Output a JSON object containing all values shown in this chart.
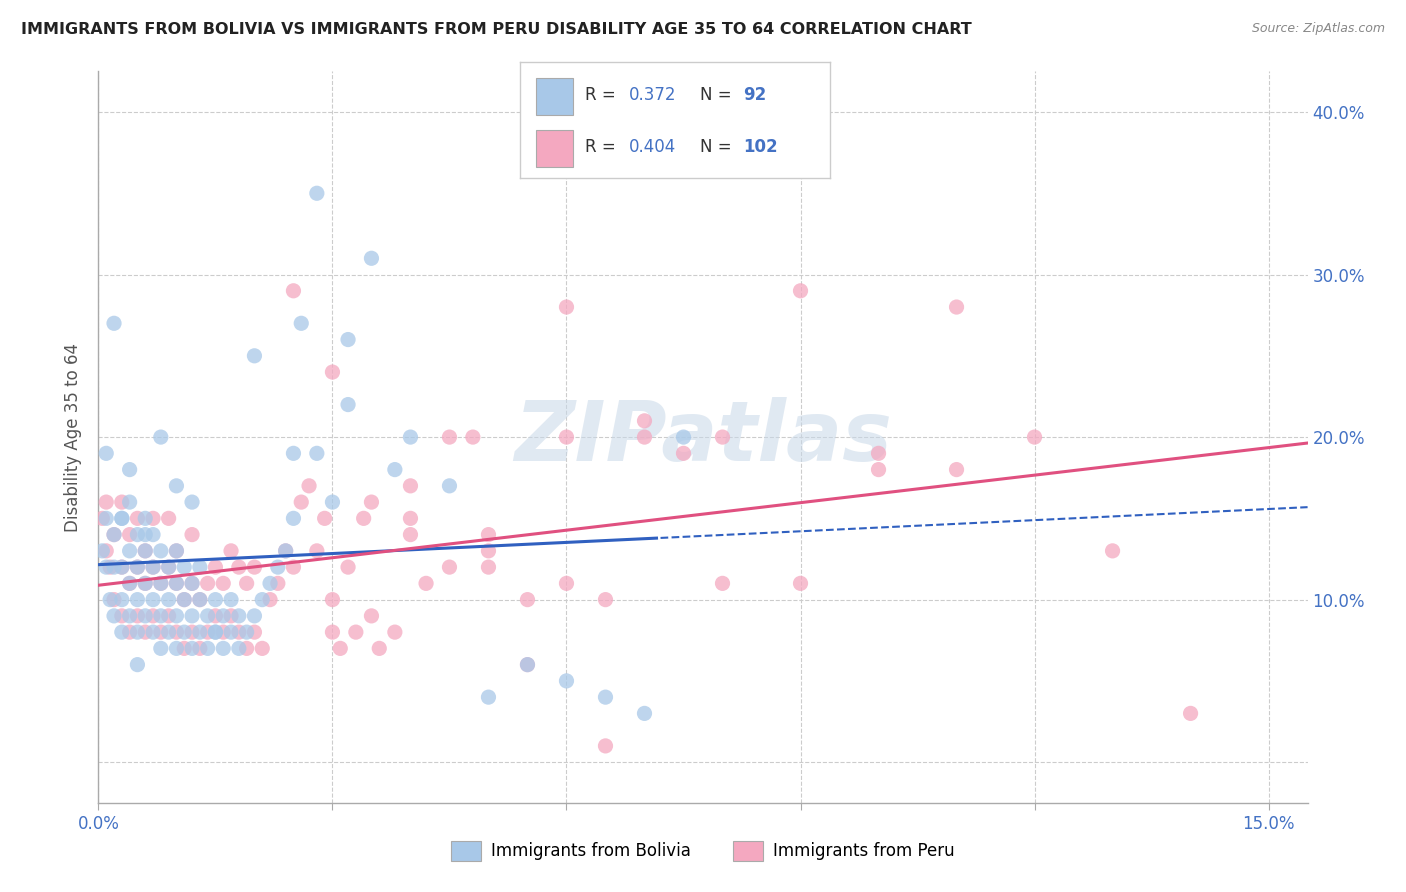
{
  "title": "IMMIGRANTS FROM BOLIVIA VS IMMIGRANTS FROM PERU DISABILITY AGE 35 TO 64 CORRELATION CHART",
  "source": "Source: ZipAtlas.com",
  "ylabel": "Disability Age 35 to 64",
  "xlim": [
    0.0,
    0.155
  ],
  "ylim": [
    -0.025,
    0.425
  ],
  "x_ticks": [
    0.0,
    0.03,
    0.06,
    0.09,
    0.12,
    0.15
  ],
  "y_ticks": [
    0.0,
    0.1,
    0.2,
    0.3,
    0.4
  ],
  "bolivia_color": "#a8c8e8",
  "peru_color": "#f4a8c0",
  "bolivia_line_color": "#3060c0",
  "peru_line_color": "#e05080",
  "bolivia_R": 0.372,
  "bolivia_N": 92,
  "peru_R": 0.404,
  "peru_N": 102,
  "legend_label_bolivia": "Immigrants from Bolivia",
  "legend_label_peru": "Immigrants from Peru",
  "background_color": "#ffffff",
  "grid_color": "#cccccc",
  "watermark": "ZIPatlas",
  "bolivia_line_x_end": 0.072,
  "bolivia_scatter_x": [
    0.0005,
    0.001,
    0.001,
    0.0015,
    0.002,
    0.002,
    0.002,
    0.003,
    0.003,
    0.003,
    0.003,
    0.004,
    0.004,
    0.004,
    0.004,
    0.005,
    0.005,
    0.005,
    0.005,
    0.006,
    0.006,
    0.006,
    0.006,
    0.007,
    0.007,
    0.007,
    0.007,
    0.008,
    0.008,
    0.008,
    0.008,
    0.009,
    0.009,
    0.009,
    0.01,
    0.01,
    0.01,
    0.01,
    0.011,
    0.011,
    0.011,
    0.012,
    0.012,
    0.012,
    0.013,
    0.013,
    0.013,
    0.014,
    0.014,
    0.015,
    0.015,
    0.016,
    0.016,
    0.017,
    0.017,
    0.018,
    0.018,
    0.019,
    0.02,
    0.021,
    0.022,
    0.023,
    0.024,
    0.025,
    0.026,
    0.028,
    0.03,
    0.032,
    0.035,
    0.038,
    0.04,
    0.045,
    0.05,
    0.055,
    0.06,
    0.065,
    0.07,
    0.075,
    0.032,
    0.028,
    0.02,
    0.015,
    0.025,
    0.01,
    0.012,
    0.008,
    0.005,
    0.003,
    0.002,
    0.001,
    0.004,
    0.006
  ],
  "bolivia_scatter_y": [
    0.13,
    0.12,
    0.15,
    0.1,
    0.09,
    0.12,
    0.14,
    0.08,
    0.1,
    0.12,
    0.15,
    0.09,
    0.11,
    0.13,
    0.16,
    0.08,
    0.1,
    0.12,
    0.14,
    0.09,
    0.11,
    0.13,
    0.15,
    0.08,
    0.1,
    0.12,
    0.14,
    0.07,
    0.09,
    0.11,
    0.13,
    0.08,
    0.1,
    0.12,
    0.07,
    0.09,
    0.11,
    0.13,
    0.08,
    0.1,
    0.12,
    0.07,
    0.09,
    0.11,
    0.08,
    0.1,
    0.12,
    0.07,
    0.09,
    0.08,
    0.1,
    0.07,
    0.09,
    0.08,
    0.1,
    0.07,
    0.09,
    0.08,
    0.09,
    0.1,
    0.11,
    0.12,
    0.13,
    0.15,
    0.27,
    0.19,
    0.16,
    0.22,
    0.31,
    0.18,
    0.2,
    0.17,
    0.04,
    0.06,
    0.05,
    0.04,
    0.03,
    0.2,
    0.26,
    0.35,
    0.25,
    0.08,
    0.19,
    0.17,
    0.16,
    0.2,
    0.06,
    0.15,
    0.27,
    0.19,
    0.18,
    0.14
  ],
  "peru_scatter_x": [
    0.0005,
    0.001,
    0.001,
    0.0015,
    0.002,
    0.002,
    0.003,
    0.003,
    0.003,
    0.004,
    0.004,
    0.004,
    0.005,
    0.005,
    0.005,
    0.006,
    0.006,
    0.006,
    0.007,
    0.007,
    0.007,
    0.008,
    0.008,
    0.009,
    0.009,
    0.009,
    0.01,
    0.01,
    0.01,
    0.011,
    0.011,
    0.012,
    0.012,
    0.012,
    0.013,
    0.013,
    0.014,
    0.014,
    0.015,
    0.015,
    0.016,
    0.016,
    0.017,
    0.017,
    0.018,
    0.018,
    0.019,
    0.019,
    0.02,
    0.02,
    0.021,
    0.022,
    0.023,
    0.024,
    0.025,
    0.026,
    0.027,
    0.028,
    0.029,
    0.03,
    0.031,
    0.032,
    0.033,
    0.034,
    0.035,
    0.036,
    0.038,
    0.04,
    0.042,
    0.045,
    0.048,
    0.05,
    0.055,
    0.06,
    0.065,
    0.07,
    0.075,
    0.08,
    0.09,
    0.1,
    0.11,
    0.12,
    0.13,
    0.14,
    0.025,
    0.03,
    0.035,
    0.04,
    0.045,
    0.05,
    0.055,
    0.06,
    0.065,
    0.07,
    0.08,
    0.09,
    0.1,
    0.11,
    0.05,
    0.06,
    0.04,
    0.03
  ],
  "peru_scatter_y": [
    0.15,
    0.13,
    0.16,
    0.12,
    0.1,
    0.14,
    0.09,
    0.12,
    0.16,
    0.08,
    0.11,
    0.14,
    0.09,
    0.12,
    0.15,
    0.08,
    0.11,
    0.13,
    0.09,
    0.12,
    0.15,
    0.08,
    0.11,
    0.09,
    0.12,
    0.15,
    0.08,
    0.11,
    0.13,
    0.07,
    0.1,
    0.08,
    0.11,
    0.14,
    0.07,
    0.1,
    0.08,
    0.11,
    0.09,
    0.12,
    0.08,
    0.11,
    0.09,
    0.13,
    0.08,
    0.12,
    0.07,
    0.11,
    0.08,
    0.12,
    0.07,
    0.1,
    0.11,
    0.13,
    0.12,
    0.16,
    0.17,
    0.13,
    0.15,
    0.1,
    0.07,
    0.12,
    0.08,
    0.15,
    0.09,
    0.07,
    0.08,
    0.14,
    0.11,
    0.12,
    0.2,
    0.12,
    0.06,
    0.11,
    0.01,
    0.2,
    0.19,
    0.2,
    0.11,
    0.19,
    0.28,
    0.2,
    0.13,
    0.03,
    0.29,
    0.24,
    0.16,
    0.17,
    0.2,
    0.13,
    0.1,
    0.2,
    0.1,
    0.21,
    0.11,
    0.29,
    0.18,
    0.18,
    0.14,
    0.28,
    0.15,
    0.08
  ]
}
